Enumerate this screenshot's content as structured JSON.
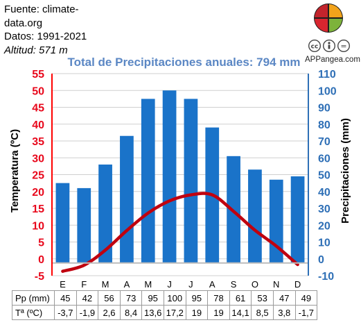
{
  "header": {
    "source_line1": "Fuente: climate-",
    "source_line2": "data.org",
    "period": "Datos: 1991-2021",
    "altitude": "Altitud: 571 m",
    "site": "APPangea.com",
    "cc_icon": "creative-commons-icon",
    "logo_icon": "puzzle-globe-icon"
  },
  "chart_data": {
    "type": "bar+line",
    "title": "Total de Precipitaciones anuales: 794 mm",
    "categories": [
      "E",
      "F",
      "M",
      "A",
      "M",
      "J",
      "J",
      "A",
      "S",
      "O",
      "N",
      "D"
    ],
    "series": [
      {
        "name": "Pp (mm)",
        "type": "bar",
        "axis": "right",
        "color": "#1a73c9",
        "values": [
          45,
          42,
          56,
          73,
          95,
          100,
          95,
          78,
          61,
          53,
          47,
          49
        ]
      },
      {
        "name": "Tª (ºC)",
        "type": "line",
        "axis": "left",
        "color": "#c0000f",
        "values": [
          -3.7,
          -1.9,
          2.6,
          8.4,
          13.6,
          17.2,
          19,
          19,
          14.1,
          8.5,
          3.8,
          -1.7
        ]
      }
    ],
    "ylabel_left": "Temperatura (ºC)",
    "ylabel_right": "Precipitaciones (mm)",
    "ylim_left": [
      -5,
      55
    ],
    "ylim_right": [
      -10,
      110
    ],
    "yticks_left": [
      "55",
      "50",
      "45",
      "40",
      "35",
      "30",
      "25",
      "20",
      "15",
      "10",
      "5",
      "0",
      "-5"
    ],
    "yticks_right": [
      "110",
      "100",
      "90",
      "80",
      "70",
      "60",
      "50",
      "40",
      "30",
      "20",
      "10",
      "0",
      "-10"
    ],
    "grid": true,
    "table_rows": [
      {
        "label": "Pp (mm)",
        "cells": [
          "45",
          "42",
          "56",
          "73",
          "95",
          "100",
          "95",
          "78",
          "61",
          "53",
          "47",
          "49"
        ]
      },
      {
        "label": "Tª (ºC)",
        "cells": [
          "-3,7",
          "-1,9",
          "2,6",
          "8,4",
          "13,6",
          "17,2",
          "19",
          "19",
          "14,1",
          "8,5",
          "3,8",
          "-1,7"
        ]
      }
    ]
  }
}
